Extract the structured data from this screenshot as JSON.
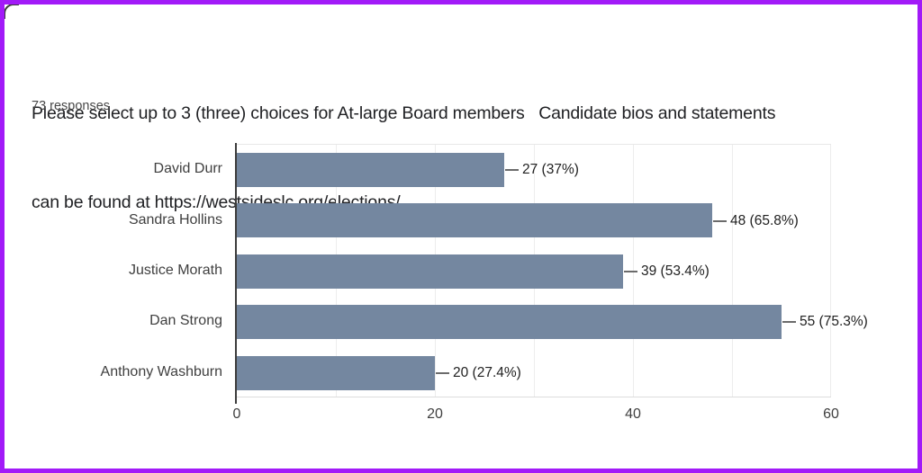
{
  "page": {
    "border_color": "#A21AF8",
    "background_color": "#ffffff"
  },
  "header": {
    "title_lines": [
      "Please select up to 3 (three) choices for At-large Board members   Candidate bios and statements",
      "can be found at https://westsideslc.org/elections/"
    ],
    "responses_label": "73 responses"
  },
  "chart_data": {
    "type": "bar",
    "orientation": "horizontal",
    "categories": [
      "David Durr",
      "Sandra Hollins",
      "Justice Morath",
      "Dan Strong",
      "Anthony Washburn"
    ],
    "values": [
      27,
      48,
      39,
      55,
      20
    ],
    "value_labels": [
      "27 (37%)",
      "48 (65.8%)",
      "39 (53.4%)",
      "55 (75.3%)",
      "20 (27.4%)"
    ],
    "x_ticks": [
      0,
      20,
      40,
      60
    ],
    "xlim": [
      0,
      60
    ],
    "grid_interval": 10,
    "bar_color": "#7487A0",
    "title": "Please select up to 3 (three) choices for At-large Board members   Candidate bios and statements can be found at https://westsideslc.org/elections/",
    "legend": "none",
    "grid": "vertical-light"
  }
}
